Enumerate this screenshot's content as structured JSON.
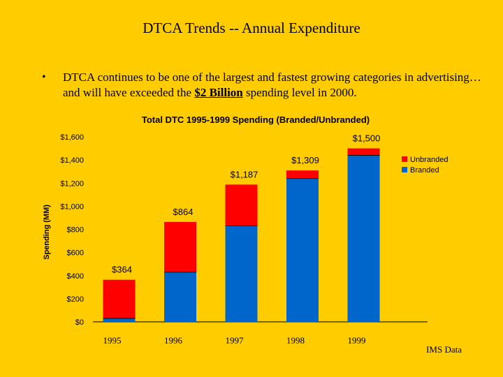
{
  "slide": {
    "title": "DTCA Trends -- Annual Expenditure",
    "bullet_symbol": "•",
    "bullet_before": "DTCA continues to be one of the largest and fastest growing categories in advertising…and will have exceeded the ",
    "bullet_highlight": "$2 Billion",
    "bullet_after": " spending level in 2000.",
    "source": "IMS Data"
  },
  "colors": {
    "background": "#FFCC00",
    "branded": "#0066CC",
    "unbranded": "#FF0000"
  },
  "chart_data": {
    "type": "bar",
    "stacked": true,
    "title": "Total DTC 1995-1999 Spending (Branded/Unbranded)",
    "xlabel": "",
    "ylabel": "Spending (MM)",
    "ylim": [
      0,
      1600
    ],
    "yticks": [
      0,
      200,
      400,
      600,
      800,
      1000,
      1200,
      1400,
      1600
    ],
    "ytick_labels": [
      "$0",
      "$200",
      "$400",
      "$600",
      "$800",
      "$1,000",
      "$1,200",
      "$1,400",
      "$1,600"
    ],
    "categories": [
      "1995",
      "1996",
      "1997",
      "1998",
      "1999"
    ],
    "series": [
      {
        "name": "Branded",
        "values": [
          30,
          430,
          830,
          1240,
          1440
        ]
      },
      {
        "name": "Unbranded",
        "values": [
          334,
          434,
          357,
          69,
          60
        ]
      }
    ],
    "totals": [
      364,
      864,
      1187,
      1309,
      1500
    ],
    "total_labels": [
      "$364",
      "$864",
      "$1,187",
      "$1,309",
      "$1,500"
    ],
    "legend": [
      {
        "name": "Unbranded",
        "color": "#FF0000"
      },
      {
        "name": "Branded",
        "color": "#0066CC"
      }
    ],
    "legend_position": "right"
  }
}
